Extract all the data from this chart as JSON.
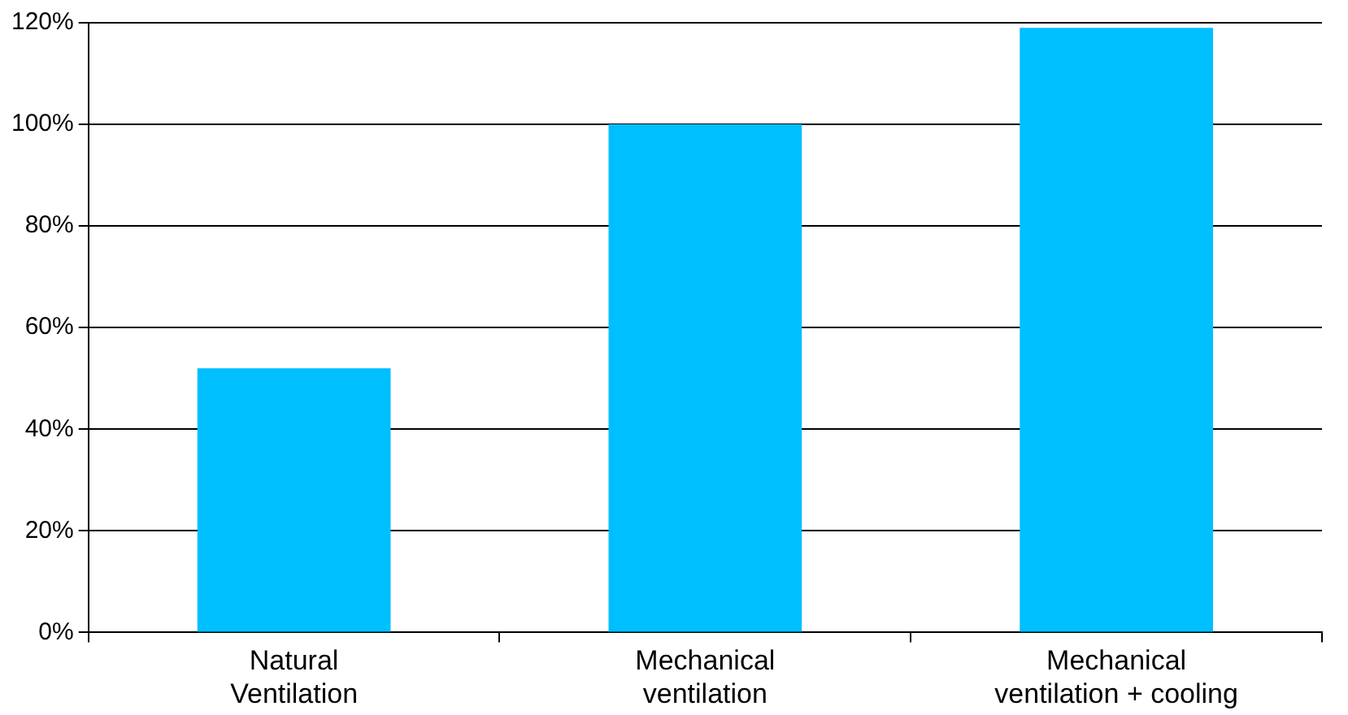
{
  "chart_data": {
    "type": "bar",
    "categories": [
      "Natural\nVentilation",
      "Mechanical\nventilation",
      "Mechanical\nventilation + cooling"
    ],
    "values": [
      52,
      100,
      119
    ],
    "color": "#00bfff",
    "ylim": [
      0,
      120
    ],
    "yticks": [
      {
        "value": 0,
        "label": "0%"
      },
      {
        "value": 20,
        "label": "20%"
      },
      {
        "value": 40,
        "label": "40%"
      },
      {
        "value": 60,
        "label": "60%"
      },
      {
        "value": 80,
        "label": "80%"
      },
      {
        "value": 100,
        "label": "100%"
      },
      {
        "value": 120,
        "label": "120%"
      }
    ],
    "grid": "y",
    "legend": false
  }
}
